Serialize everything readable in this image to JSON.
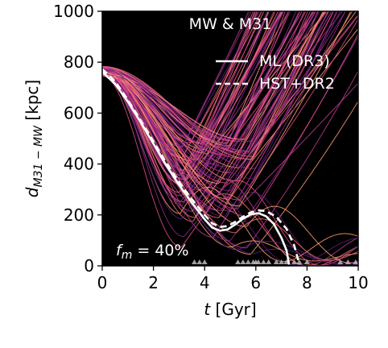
{
  "chart_data": {
    "type": "line",
    "title": "MW & M31",
    "xlabel": "t [Gyr]",
    "ylabel": "d_{M31−MW} [kpc]",
    "ylabel_main": "d",
    "ylabel_sub": "M31 − MW",
    "ylabel_unit": " [kpc]",
    "xlabel_var": "t",
    "xlabel_unit": " [Gyr]",
    "xlim": [
      0,
      10
    ],
    "ylim": [
      0,
      1000
    ],
    "x_ticks": [
      "0",
      "2",
      "4",
      "6",
      "8",
      "10"
    ],
    "y_ticks": [
      "0",
      "200",
      "400",
      "600",
      "800",
      "1000"
    ],
    "grid": false,
    "background": "#000000",
    "legend_position": "upper-right",
    "annotation": {
      "var": "f",
      "sub": "m",
      "rest": " = 40%",
      "text": "f_m = 40%"
    },
    "series": [
      {
        "name": "ML (DR3)",
        "style": "solid",
        "color": "#ffffff",
        "x": [
          0,
          0.5,
          1.0,
          1.5,
          2.0,
          2.5,
          3.0,
          3.5,
          4.0,
          4.3,
          4.6,
          4.9,
          5.2,
          5.5,
          5.8,
          6.1,
          6.4,
          6.7,
          7.0,
          7.2,
          7.3
        ],
        "y": [
          762,
          715,
          645,
          565,
          480,
          395,
          318,
          248,
          183,
          150,
          138,
          143,
          163,
          185,
          202,
          207,
          195,
          165,
          110,
          60,
          5
        ]
      },
      {
        "name": "HST+DR2",
        "style": "dashed",
        "color": "#ffffff",
        "x": [
          0,
          0.5,
          1.0,
          1.5,
          2.0,
          2.5,
          3.0,
          3.5,
          4.0,
          4.3,
          4.6,
          4.9,
          5.2,
          5.5,
          5.8,
          6.1,
          6.4,
          6.8,
          7.2,
          7.5,
          7.7
        ],
        "y": [
          773,
          725,
          652,
          572,
          488,
          405,
          330,
          262,
          200,
          167,
          153,
          156,
          173,
          193,
          210,
          218,
          215,
          193,
          145,
          80,
          5
        ]
      }
    ],
    "ensemble_colors": [
      "#ff9d6e",
      "#f5716c",
      "#e2498b",
      "#c03a8f",
      "#8c2b8a",
      "#5c1f7a"
    ],
    "turnaround_markers_x": [
      3.6,
      3.8,
      4.0,
      5.3,
      5.5,
      5.7,
      5.9,
      6.0,
      6.1,
      6.3,
      6.5,
      6.8,
      7.0,
      7.2,
      7.5,
      7.7,
      8.0,
      9.3,
      9.6,
      9.9
    ]
  }
}
